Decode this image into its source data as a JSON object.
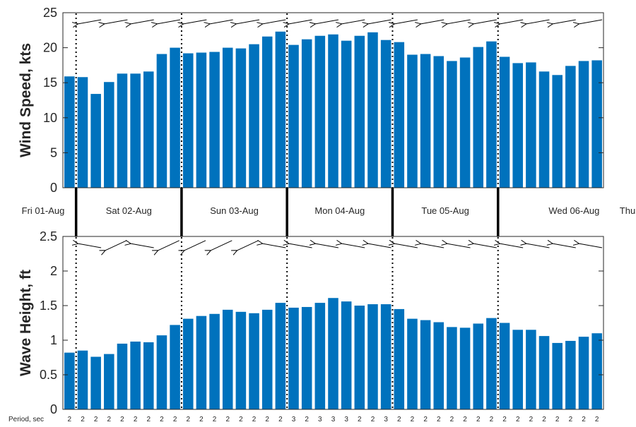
{
  "colors": {
    "bar": "#0072BD",
    "axis": "#262626",
    "arrow": "#000000"
  },
  "chart_data": [
    {
      "type": "bar",
      "ylabel": "Wind Speed, kts",
      "ylim": [
        0,
        25
      ],
      "yticks": [
        "0",
        "5",
        "10",
        "15",
        "20",
        "25"
      ],
      "values": [
        15.9,
        15.8,
        13.4,
        15.1,
        16.3,
        16.3,
        16.6,
        19.1,
        20.0,
        19.2,
        19.3,
        19.4,
        20.0,
        19.9,
        20.5,
        21.6,
        22.3,
        20.4,
        21.2,
        21.7,
        21.9,
        21.0,
        21.7,
        22.2,
        21.1,
        20.8,
        19.0,
        19.1,
        18.8,
        18.1,
        18.6,
        20.1,
        20.9,
        18.7,
        17.8,
        17.9,
        16.6,
        16.1,
        17.4,
        18.1,
        18.2
      ],
      "direction_deg": [
        80,
        80,
        80,
        80,
        80,
        80,
        80,
        80,
        80,
        80,
        80,
        80,
        80,
        80,
        80,
        80,
        80,
        80,
        80,
        80,
        80,
        80,
        80,
        80,
        80,
        80,
        80,
        80,
        80,
        80,
        80,
        80,
        80,
        80,
        80,
        80,
        80,
        80,
        80,
        80,
        80
      ],
      "grid": false
    },
    {
      "type": "bar",
      "ylabel": "Wave Height, ft",
      "ylim": [
        0,
        2.5
      ],
      "yticks": [
        "0",
        "0.5",
        "1",
        "1.5",
        "2",
        "2.5"
      ],
      "values": [
        0.82,
        0.85,
        0.76,
        0.8,
        0.95,
        0.98,
        0.97,
        1.07,
        1.22,
        1.31,
        1.35,
        1.38,
        1.44,
        1.41,
        1.39,
        1.44,
        1.54,
        1.47,
        1.48,
        1.54,
        1.61,
        1.56,
        1.5,
        1.52,
        1.52,
        1.45,
        1.31,
        1.29,
        1.26,
        1.19,
        1.18,
        1.24,
        1.32,
        1.25,
        1.15,
        1.15,
        1.06,
        0.96,
        0.99,
        1.05,
        1.1
      ],
      "direction_deg": [
        100,
        100,
        65,
        65,
        65,
        100,
        100,
        65,
        100,
        65,
        65,
        65,
        65,
        65,
        65,
        100,
        100,
        100,
        100,
        100,
        100,
        100,
        100,
        100,
        100,
        100,
        100,
        100,
        100,
        100,
        100,
        100,
        100,
        100,
        100,
        100,
        100,
        100,
        100,
        100,
        100
      ],
      "grid": false
    }
  ],
  "days": [
    "Fri 01-Aug",
    "Sat 02-Aug",
    "Sun 03-Aug",
    "Mon 04-Aug",
    "Tue 05-Aug",
    "Wed 06-Aug",
    "Thu"
  ],
  "day_boundaries_after_index": [
    0.5,
    8.5,
    16.5,
    24.5,
    32.5
  ],
  "period_label": "Period, sec",
  "periods": [
    "2",
    "2",
    "2",
    "2",
    "2",
    "2",
    "2",
    "2",
    "2",
    "2",
    "2",
    "2",
    "2",
    "2",
    "2",
    "2",
    "2",
    "3",
    "2",
    "3",
    "3",
    "3",
    "2",
    "2",
    "3",
    "2",
    "2",
    "2",
    "2",
    "2",
    "2",
    "2",
    "2",
    "2",
    "2",
    "2",
    "2",
    "2",
    "2",
    "2",
    "2"
  ]
}
